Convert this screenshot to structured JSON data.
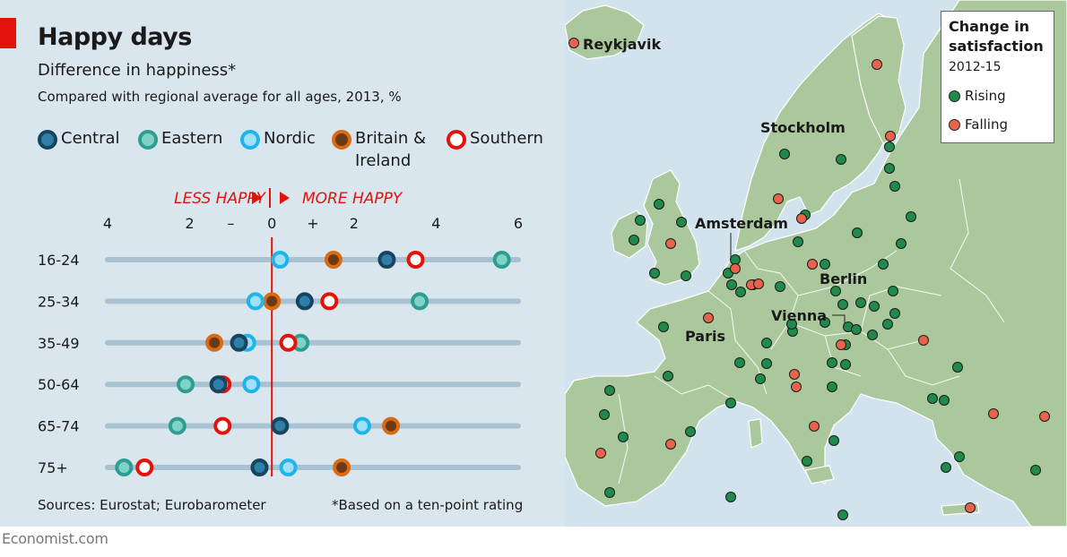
{
  "title": "Happy days",
  "subtitle": "Difference in happiness*",
  "subtitle2": "Compared with regional average for all ages, 2013, %",
  "colors": {
    "central": "#17455f",
    "eastern": "#2f9e92",
    "nordic": "#1fb5ea",
    "britain": "#d96c13",
    "southern": "#e3120b",
    "rising": "#1f8a4c",
    "falling": "#e8634b",
    "track": "#a9c2d1",
    "zero": "#e3120b"
  },
  "legend": [
    {
      "key": "central",
      "label": "Central"
    },
    {
      "key": "eastern",
      "label": "Eastern"
    },
    {
      "key": "nordic",
      "label": "Nordic"
    },
    {
      "key": "britain",
      "label": "Britain &",
      "label2": "Ireland"
    },
    {
      "key": "southern",
      "label": "Southern"
    }
  ],
  "direction": {
    "less": "LESS HAPPY",
    "more": "MORE HAPPY"
  },
  "chart_data": {
    "type": "scatter",
    "title": "Happy days",
    "subtitle": "Difference in happiness*",
    "xlim": [
      -4,
      6
    ],
    "ticks": [
      {
        "value": -4,
        "label": "4"
      },
      {
        "value": -2,
        "label": "2"
      },
      {
        "value": -1,
        "label": "–"
      },
      {
        "value": 0,
        "label": "0"
      },
      {
        "value": 1,
        "label": "+"
      },
      {
        "value": 2,
        "label": "2"
      },
      {
        "value": 4,
        "label": "4"
      },
      {
        "value": 6,
        "label": "6"
      }
    ],
    "categories": [
      "16-24",
      "25-34",
      "35-49",
      "50-64",
      "65-74",
      "75+"
    ],
    "series": [
      {
        "key": "britain",
        "name": "Britain & Ireland",
        "values": [
          1.5,
          0.0,
          -1.4,
          -1.3,
          2.9,
          1.7
        ]
      },
      {
        "key": "nordic",
        "name": "Nordic",
        "values": [
          0.2,
          -0.4,
          -0.6,
          -0.5,
          2.2,
          0.4
        ]
      },
      {
        "key": "eastern",
        "name": "Eastern",
        "values": [
          5.6,
          3.6,
          0.7,
          -2.1,
          -2.3,
          -3.6
        ]
      },
      {
        "key": "southern",
        "name": "Southern",
        "values": [
          3.5,
          1.4,
          0.4,
          -1.2,
          -1.2,
          -3.1
        ]
      },
      {
        "key": "central",
        "name": "Central",
        "values": [
          2.8,
          0.8,
          -0.8,
          -1.3,
          0.2,
          -0.3
        ]
      }
    ]
  },
  "sources": "Sources: Eurostat; Eurobarometer",
  "footnote": "*Based on a ten-point rating",
  "footer": "Economist.com",
  "map": {
    "legend_title": "Change in satisfaction",
    "legend_title_l1": "Change in",
    "legend_title_l2": "satisfaction",
    "legend_years": "2012-15",
    "rising_label": "Rising",
    "falling_label": "Falling",
    "cities": {
      "reykjavik": "Reykjavik",
      "stockholm": "Stockholm",
      "amsterdam": "Amsterdam",
      "berlin": "Berlin",
      "vienna": "Vienna",
      "paris": "Paris"
    }
  }
}
